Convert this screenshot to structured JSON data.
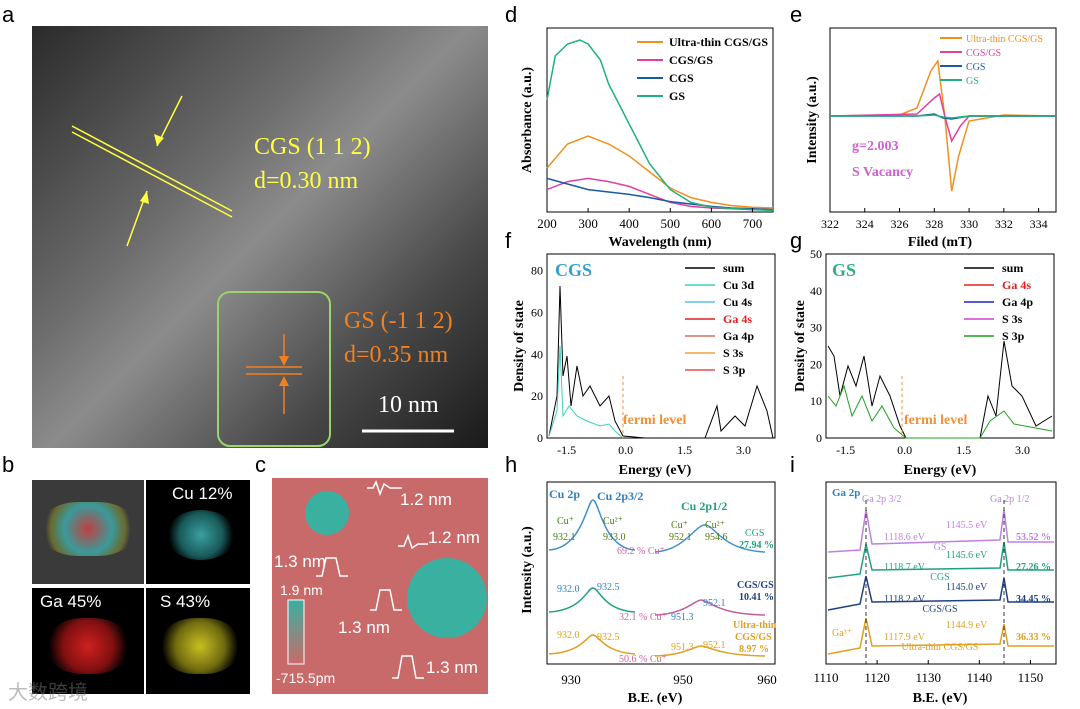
{
  "panel_labels": {
    "a": "a",
    "b": "b",
    "c": "c",
    "d": "d",
    "e": "e",
    "f": "f",
    "g": "g",
    "h": "h",
    "i": "i"
  },
  "panel_a": {
    "cgs_line1": "CGS (1 1 2)",
    "cgs_line2": "d=0.30 nm",
    "gs_line1": "GS (-1 1 2)",
    "gs_line2": "d=0.35 nm",
    "scale": "10 nm"
  },
  "panel_b": {
    "cu": "Cu 12%",
    "ga": "Ga 45%",
    "s": "S 43%"
  },
  "panel_c": {
    "h1": "1.2 nm",
    "h2": "1.2 nm",
    "h3": "1.3 nm",
    "h4": "1.3 nm",
    "h5": "1.3 nm",
    "cmax": "1.9 nm",
    "cmin": "-715.5pm"
  },
  "panel_d": {
    "xlabel": "Wavelength (nm)",
    "ylabel": "Absorbance (a.u.)",
    "xticks": [
      "200",
      "300",
      "400",
      "500",
      "600",
      "700"
    ],
    "legend": [
      "Ultra-thin CGS/GS",
      "CGS/GS",
      "CGS",
      "GS"
    ]
  },
  "panel_e": {
    "xlabel": "Filed (mT)",
    "ylabel": "Intensity (a.u.)",
    "xticks": [
      "322",
      "324",
      "326",
      "328",
      "330",
      "332",
      "334"
    ],
    "legend": [
      "Ultra-thin CGS/GS",
      "CGS/GS",
      "CGS",
      "GS"
    ],
    "g_text": "g=2.003",
    "vac_text": "S Vacancy"
  },
  "panel_f": {
    "title": "CGS",
    "xlabel": "Energy (eV)",
    "ylabel": "Density of state",
    "xticks": [
      "-1.5",
      "0.0",
      "1.5",
      "3.0"
    ],
    "yticks": [
      "0",
      "20",
      "40",
      "60",
      "80"
    ],
    "legend": [
      "sum",
      "Cu 3d",
      "Cu 4s",
      "Ga 4s",
      "Ga 4p",
      "S 3s",
      "S 3p"
    ],
    "fermi": "fermi level"
  },
  "panel_g": {
    "title": "GS",
    "xlabel": "Energy (eV)",
    "ylabel": "Density of state",
    "xticks": [
      "-1.5",
      "0.0",
      "1.5",
      "3.0"
    ],
    "yticks": [
      "0",
      "10",
      "20",
      "30",
      "40",
      "50"
    ],
    "legend": [
      "sum",
      "Ga 4s",
      "Ga 4p",
      "S 3s",
      "S 3p"
    ],
    "fermi": "fermi level"
  },
  "panel_h": {
    "xlabel": "B.E. (eV)",
    "ylabel": "Intensity (a.u.)",
    "xticks": [
      "930",
      "950",
      "960"
    ],
    "cu2p": "Cu 2p",
    "cu2p32": "Cu 2p3/2",
    "cu2p12": "Cu 2p1/2",
    "row1": {
      "a": "Cu⁺",
      "b": "932.1",
      "c": "Cu²⁺",
      "d": "933.0",
      "e": "69.2 % Cu⁺",
      "f": "Cu⁺",
      "g": "952.1",
      "h": "Cu²⁺",
      "i": "954.6",
      "name": "CGS",
      "pct": "27.94 %"
    },
    "row2": {
      "a": "932.0",
      "b": "932.5",
      "c": "32.1 % Cu⁺",
      "d": "951.3",
      "e": "952.1",
      "name": "CGS/GS",
      "pct": "10.41 %"
    },
    "row3": {
      "a": "932.0",
      "b": "932.5",
      "c": "50.6 % Cu⁺",
      "d": "951.3",
      "e": "952.1",
      "name1": "Ultra-thin",
      "name2": "CGS/GS",
      "pct": "8.97 %"
    }
  },
  "panel_i": {
    "xlabel": "B.E. (eV)",
    "xticks": [
      "1110",
      "1120",
      "1130",
      "1140",
      "1150"
    ],
    "ga2p": "Ga 2p",
    "ga32": "Ga 2p 3/2",
    "ga12": "Ga 2p 1/2",
    "rows": [
      {
        "l": "1118.6 eV",
        "name": "GS",
        "r": "1145.5 eV",
        "pct": "53.52 %"
      },
      {
        "l": "1118.7 eV",
        "name": "CGS",
        "r": "1145.6 eV",
        "pct": "27.26 %"
      },
      {
        "l": "1118.2 eV",
        "name": "CGS/GS",
        "r": "1145.0 eV",
        "pct": "34.45 %"
      },
      {
        "l": "1117.9 eV",
        "name": "Ultra-thin CGS/GS",
        "r": "1144.9 eV",
        "pct": "36.33 %"
      }
    ],
    "ga3": "Ga³⁺"
  },
  "watermark": "大数跨境",
  "chart_data": [
    {
      "type": "line",
      "title": "",
      "xlabel": "Wavelength (nm)",
      "ylabel": "Absorbance (a.u.)",
      "xlim": [
        200,
        750
      ],
      "series": [
        {
          "name": "Ultra-thin CGS/GS",
          "x": [
            200,
            250,
            300,
            350,
            400,
            450,
            500,
            550,
            600,
            650,
            700,
            750
          ],
          "values": [
            0.55,
            0.85,
            0.95,
            0.85,
            0.7,
            0.5,
            0.3,
            0.18,
            0.12,
            0.08,
            0.06,
            0.05
          ]
        },
        {
          "name": "CGS/GS",
          "x": [
            200,
            250,
            300,
            350,
            400,
            450,
            500,
            550,
            600,
            650,
            700,
            750
          ],
          "values": [
            0.28,
            0.38,
            0.42,
            0.38,
            0.32,
            0.22,
            0.12,
            0.07,
            0.05,
            0.04,
            0.03,
            0.03
          ]
        },
        {
          "name": "CGS",
          "x": [
            200,
            250,
            300,
            350,
            400,
            450,
            500,
            550,
            600,
            650,
            700,
            750
          ],
          "values": [
            0.42,
            0.35,
            0.28,
            0.25,
            0.22,
            0.18,
            0.13,
            0.1,
            0.07,
            0.05,
            0.04,
            0.03
          ]
        },
        {
          "name": "GS",
          "x": [
            200,
            220,
            250,
            280,
            300,
            330,
            350,
            400,
            450,
            500,
            550,
            600,
            700,
            750
          ],
          "values": [
            1.4,
            1.95,
            2.1,
            2.15,
            2.1,
            1.9,
            1.6,
            1.1,
            0.6,
            0.28,
            0.12,
            0.06,
            0.03,
            0.02
          ]
        }
      ]
    },
    {
      "type": "line",
      "title": "",
      "xlabel": "Filed (mT)",
      "ylabel": "Intensity (a.u.)",
      "xlim": [
        322,
        335
      ],
      "series": [
        {
          "name": "Ultra-thin CGS/GS",
          "x": [
            322,
            326,
            327,
            327.8,
            328.2,
            328.6,
            329,
            329.4,
            330,
            332,
            335
          ],
          "values": [
            0,
            0.01,
            0.08,
            0.45,
            0.55,
            0,
            -0.75,
            -0.4,
            -0.05,
            0.01,
            0
          ]
        },
        {
          "name": "CGS/GS",
          "x": [
            322,
            327,
            328,
            328.3,
            328.6,
            329,
            329.5,
            330,
            335
          ],
          "values": [
            0,
            0.02,
            0.18,
            0.22,
            0,
            -0.25,
            -0.1,
            0,
            0
          ]
        },
        {
          "name": "CGS",
          "x": [
            322,
            327,
            328,
            328.5,
            329,
            330,
            335
          ],
          "values": [
            0,
            0,
            0.02,
            -0.02,
            -0.03,
            0,
            0
          ]
        },
        {
          "name": "GS",
          "x": [
            322,
            327,
            328,
            328.5,
            329,
            330,
            335
          ],
          "values": [
            0,
            0,
            0.01,
            -0.01,
            -0.02,
            0,
            0
          ]
        }
      ],
      "annotations": [
        "g=2.003",
        "S Vacancy"
      ]
    }
  ]
}
